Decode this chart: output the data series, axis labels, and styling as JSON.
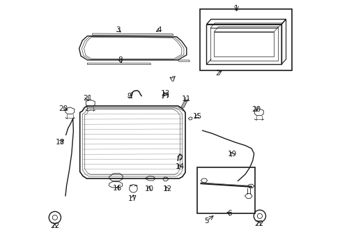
{
  "bg_color": "#ffffff",
  "line_color": "#1a1a1a",
  "fig_width": 4.89,
  "fig_height": 3.6,
  "dpi": 100,
  "annotations": [
    [
      "1",
      [
        0.765,
        0.968
      ],
      [
        0.765,
        0.958
      ]
    ],
    [
      "2",
      [
        0.69,
        0.71
      ],
      [
        0.715,
        0.725
      ]
    ],
    [
      "3",
      [
        0.29,
        0.882
      ],
      [
        0.31,
        0.868
      ]
    ],
    [
      "4",
      [
        0.455,
        0.882
      ],
      [
        0.435,
        0.87
      ]
    ],
    [
      "5",
      [
        0.645,
        0.118
      ],
      [
        0.68,
        0.145
      ]
    ],
    [
      "6",
      [
        0.738,
        0.148
      ],
      [
        0.718,
        0.158
      ]
    ],
    [
      "7",
      [
        0.51,
        0.685
      ],
      [
        0.49,
        0.698
      ]
    ],
    [
      "8",
      [
        0.3,
        0.762
      ],
      [
        0.305,
        0.748
      ]
    ],
    [
      "9",
      [
        0.337,
        0.618
      ],
      [
        0.348,
        0.608
      ]
    ],
    [
      "10",
      [
        0.415,
        0.245
      ],
      [
        0.415,
        0.268
      ]
    ],
    [
      "11",
      [
        0.565,
        0.605
      ],
      [
        0.555,
        0.587
      ]
    ],
    [
      "12",
      [
        0.488,
        0.245
      ],
      [
        0.478,
        0.265
      ]
    ],
    [
      "13",
      [
        0.48,
        0.628
      ],
      [
        0.475,
        0.615
      ]
    ],
    [
      "14",
      [
        0.538,
        0.335
      ],
      [
        0.528,
        0.352
      ]
    ],
    [
      "15",
      [
        0.608,
        0.537
      ],
      [
        0.588,
        0.528
      ]
    ],
    [
      "16",
      [
        0.288,
        0.248
      ],
      [
        0.298,
        0.268
      ]
    ],
    [
      "17",
      [
        0.348,
        0.208
      ],
      [
        0.355,
        0.232
      ]
    ],
    [
      "18",
      [
        0.058,
        0.432
      ],
      [
        0.082,
        0.448
      ]
    ],
    [
      "19",
      [
        0.748,
        0.385
      ],
      [
        0.738,
        0.402
      ]
    ],
    [
      "20",
      [
        0.845,
        0.565
      ],
      [
        0.845,
        0.548
      ]
    ],
    [
      "20",
      [
        0.072,
        0.568
      ],
      [
        0.098,
        0.558
      ]
    ],
    [
      "21",
      [
        0.168,
        0.608
      ],
      [
        0.178,
        0.592
      ]
    ],
    [
      "22",
      [
        0.038,
        0.098
      ],
      [
        0.038,
        0.118
      ]
    ],
    [
      "22",
      [
        0.855,
        0.108
      ],
      [
        0.855,
        0.128
      ]
    ]
  ]
}
